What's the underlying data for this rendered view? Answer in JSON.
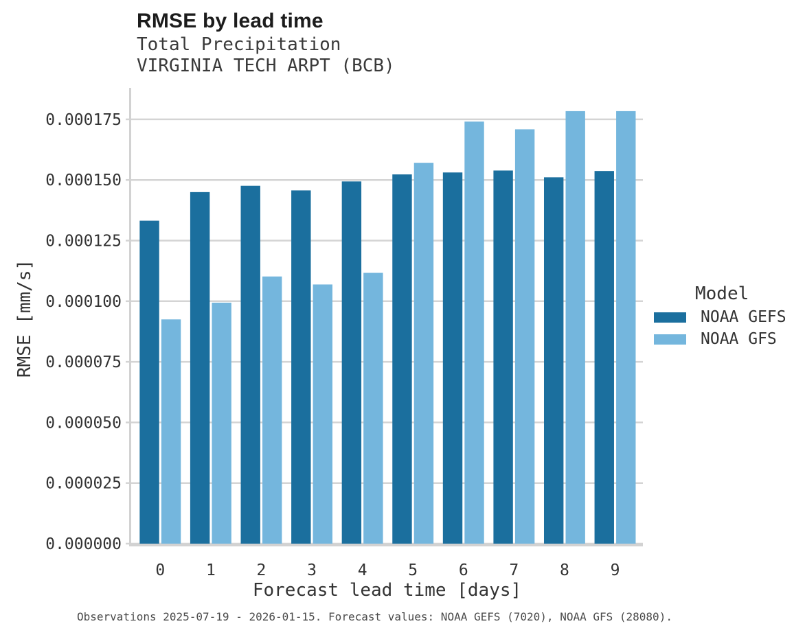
{
  "chart_data": {
    "type": "bar",
    "title": "RMSE by lead time",
    "subtitle": [
      "Total Precipitation",
      "VIRGINIA TECH ARPT (BCB)"
    ],
    "xlabel": "Forecast lead time [days]",
    "ylabel": "RMSE [mm/s]",
    "categories": [
      "0",
      "1",
      "2",
      "3",
      "4",
      "5",
      "6",
      "7",
      "8",
      "9"
    ],
    "series": [
      {
        "name": "NOAA GEFS",
        "color": "#1b6f9e",
        "values": [
          0.0001332,
          0.000145,
          0.0001476,
          0.0001457,
          0.0001494,
          0.0001523,
          0.0001531,
          0.0001539,
          0.0001511,
          0.0001537
        ]
      },
      {
        "name": "NOAA GFS",
        "color": "#74b6dd",
        "values": [
          9.25e-05,
          9.94e-05,
          0.0001102,
          0.0001069,
          0.0001117,
          0.0001571,
          0.0001741,
          0.0001709,
          0.0001784,
          0.0001784
        ]
      }
    ],
    "ylim": [
      0,
      0.000188
    ],
    "yticks": [
      0,
      2.5e-05,
      5e-05,
      7.5e-05,
      0.0001,
      0.000125,
      0.00015,
      0.000175
    ],
    "ytick_labels": [
      "0.000000",
      "0.000025",
      "0.000050",
      "0.000075",
      "0.000100",
      "0.000125",
      "0.000150",
      "0.000175"
    ],
    "grid": true,
    "legend": {
      "title": "Model",
      "position": "right"
    }
  },
  "caption": "Observations 2025-07-19 - 2026-01-15. Forecast values: NOAA GEFS (7020), NOAA GFS (28080).",
  "colors": {
    "gefs_bar": "#1b6f9e",
    "gfs_bar": "#74b6dd",
    "gridline": "#d4d4d4",
    "spine": "#d2d2d2",
    "title_text": "#1c1c1c",
    "body_text": "#333333"
  }
}
